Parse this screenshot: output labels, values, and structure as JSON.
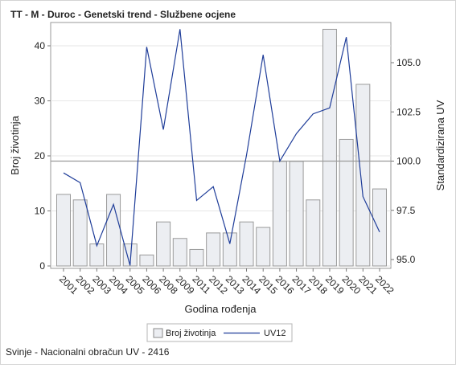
{
  "page": {
    "title": "TT - M - Duroc - Genetski trend - Službene ocjene",
    "footnote": "Svinje - Nacionalni obračun UV - 2416"
  },
  "chart_data": {
    "type": "bar",
    "title": "TT - M - Duroc - Genetski trend - Službene ocjene",
    "xlabel": "Godina rođenja",
    "ylabel": "Broj životinja",
    "y2label": "Standardizirana UV",
    "ylim": [
      0,
      44
    ],
    "y2lim": [
      94.9,
      106.9
    ],
    "yticks": [
      "0",
      "10",
      "20",
      "30",
      "40"
    ],
    "y2ticks": [
      "95.0",
      "97.5",
      "100.0",
      "102.5",
      "105.0"
    ],
    "reference_line_y2": 100.0,
    "grid": true,
    "legend_position": "bottom",
    "categories": [
      "2001",
      "2002",
      "2003",
      "2004",
      "2005",
      "2006",
      "2008",
      "2009",
      "2011",
      "2012",
      "2013",
      "2014",
      "2015",
      "2016",
      "2017",
      "2018",
      "2019",
      "2020",
      "2021",
      "2022"
    ],
    "series": [
      {
        "name": "Broj životinja",
        "kind": "bar",
        "axis": "left",
        "color": "#eceef2",
        "stroke": "#9a9a9a",
        "values": [
          13,
          12,
          4,
          13,
          4,
          2,
          8,
          5,
          3,
          6,
          6,
          8,
          7,
          19,
          19,
          12,
          43,
          23,
          33,
          14
        ]
      },
      {
        "name": "UV12",
        "kind": "line",
        "axis": "right",
        "color": "#1f3d99",
        "values": [
          99.4,
          98.9,
          95.7,
          97.8,
          94.7,
          105.8,
          101.6,
          106.7,
          98.0,
          98.7,
          95.8,
          100.3,
          105.4,
          100.0,
          101.4,
          102.4,
          102.7,
          106.3,
          98.2,
          96.4
        ]
      }
    ]
  }
}
